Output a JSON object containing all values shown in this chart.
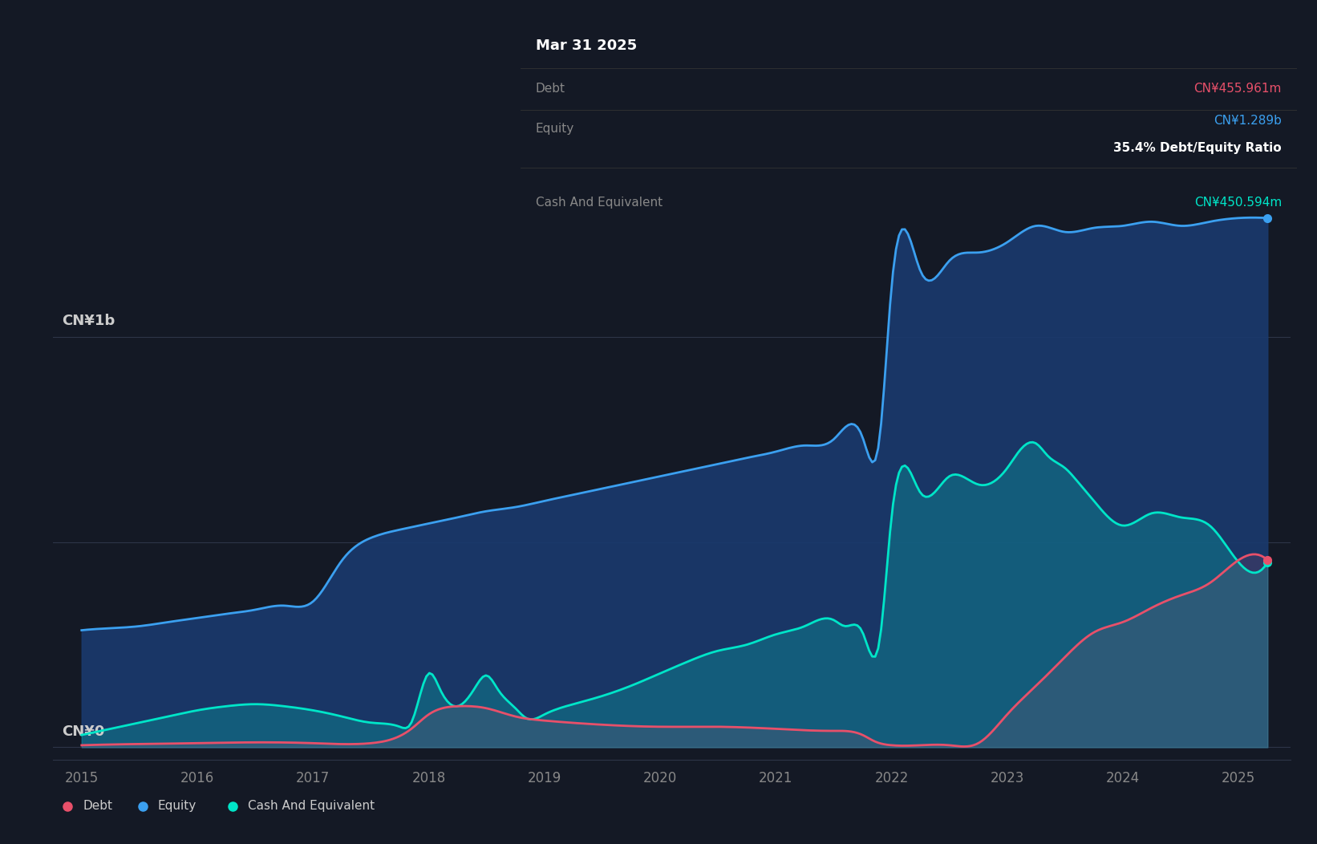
{
  "background_color": "#141925",
  "plot_bg_color": "#141925",
  "grid_color": "#2d3548",
  "y_label_top": "CN¥1b",
  "y_label_bottom": "CN¥0",
  "x_ticks": [
    2015,
    2016,
    2017,
    2018,
    2019,
    2020,
    2021,
    2022,
    2023,
    2024,
    2025
  ],
  "tooltip": {
    "date": "Mar 31 2025",
    "debt_label": "Debt",
    "debt_value": "CN¥455.961m",
    "equity_label": "Equity",
    "equity_value": "CN¥1.289b",
    "ratio": "35.4% Debt/Equity Ratio",
    "cash_label": "Cash And Equivalent",
    "cash_value": "CN¥450.594m",
    "bg": "#080808",
    "text_color": "#888888",
    "title_color": "#ffffff",
    "debt_color": "#e8506a",
    "equity_color": "#3ba0f0",
    "ratio_color": "#ffffff",
    "cash_color": "#00e5c8"
  },
  "legend": {
    "debt_label": "Debt",
    "equity_label": "Equity",
    "cash_label": "Cash And Equivalent",
    "debt_color": "#e8506a",
    "equity_color": "#3ba0f0",
    "cash_color": "#00e5c8",
    "bg": "#1e2535"
  },
  "equity": {
    "x": [
      2015.0,
      2015.25,
      2015.5,
      2015.75,
      2016.0,
      2016.25,
      2016.5,
      2016.75,
      2017.0,
      2017.25,
      2017.5,
      2017.75,
      2018.0,
      2018.25,
      2018.5,
      2018.75,
      2019.0,
      2019.25,
      2019.5,
      2019.75,
      2020.0,
      2020.25,
      2020.5,
      2020.75,
      2021.0,
      2021.25,
      2021.5,
      2021.75,
      2021.9,
      2022.0,
      2022.25,
      2022.5,
      2022.75,
      2023.0,
      2023.25,
      2023.5,
      2023.75,
      2024.0,
      2024.25,
      2024.5,
      2024.75,
      2025.0,
      2025.25
    ],
    "y": [
      0.285,
      0.29,
      0.295,
      0.305,
      0.315,
      0.325,
      0.335,
      0.345,
      0.355,
      0.455,
      0.51,
      0.53,
      0.545,
      0.56,
      0.575,
      0.585,
      0.6,
      0.615,
      0.63,
      0.645,
      0.66,
      0.675,
      0.69,
      0.705,
      0.72,
      0.735,
      0.75,
      0.755,
      0.76,
      1.12,
      1.16,
      1.185,
      1.205,
      1.23,
      1.27,
      1.255,
      1.265,
      1.27,
      1.28,
      1.27,
      1.28,
      1.289,
      1.289
    ],
    "color": "#3ba0f0",
    "fill_color": "#1a3a6e",
    "fill_alpha": 0.9,
    "linewidth": 2.0
  },
  "cash": {
    "x": [
      2015.0,
      2015.25,
      2015.5,
      2015.75,
      2016.0,
      2016.25,
      2016.5,
      2016.75,
      2017.0,
      2017.25,
      2017.5,
      2017.75,
      2017.85,
      2018.0,
      2018.1,
      2018.25,
      2018.4,
      2018.5,
      2018.6,
      2018.75,
      2018.85,
      2019.0,
      2019.25,
      2019.5,
      2019.75,
      2020.0,
      2020.25,
      2020.5,
      2020.75,
      2021.0,
      2021.25,
      2021.5,
      2021.6,
      2021.75,
      2021.9,
      2022.0,
      2022.25,
      2022.5,
      2022.75,
      2023.0,
      2023.1,
      2023.25,
      2023.35,
      2023.5,
      2023.6,
      2023.75,
      2024.0,
      2024.25,
      2024.5,
      2024.75,
      2025.0,
      2025.25
    ],
    "y": [
      0.03,
      0.045,
      0.06,
      0.075,
      0.09,
      0.1,
      0.105,
      0.1,
      0.09,
      0.075,
      0.06,
      0.05,
      0.06,
      0.18,
      0.14,
      0.1,
      0.145,
      0.175,
      0.14,
      0.095,
      0.07,
      0.08,
      0.105,
      0.125,
      0.15,
      0.18,
      0.21,
      0.235,
      0.25,
      0.275,
      0.295,
      0.31,
      0.295,
      0.28,
      0.265,
      0.56,
      0.62,
      0.66,
      0.64,
      0.68,
      0.72,
      0.74,
      0.71,
      0.68,
      0.65,
      0.6,
      0.54,
      0.57,
      0.56,
      0.54,
      0.4506,
      0.4506
    ],
    "color": "#00e5c8",
    "fill_color": "#00e5c8",
    "fill_alpha": 0.22,
    "linewidth": 2.0
  },
  "debt": {
    "x": [
      2015.0,
      2015.5,
      2016.0,
      2016.5,
      2017.0,
      2017.5,
      2017.85,
      2018.0,
      2018.25,
      2018.5,
      2018.75,
      2019.0,
      2019.5,
      2020.0,
      2020.5,
      2021.0,
      2021.5,
      2021.75,
      2021.85,
      2022.0,
      2022.25,
      2022.5,
      2022.75,
      2023.0,
      2023.25,
      2023.5,
      2023.75,
      2024.0,
      2024.25,
      2024.5,
      2024.75,
      2025.0,
      2025.25
    ],
    "y": [
      0.005,
      0.008,
      0.01,
      0.012,
      0.01,
      0.01,
      0.045,
      0.08,
      0.1,
      0.095,
      0.075,
      0.065,
      0.055,
      0.05,
      0.05,
      0.045,
      0.04,
      0.03,
      0.015,
      0.005,
      0.005,
      0.005,
      0.01,
      0.08,
      0.15,
      0.22,
      0.28,
      0.305,
      0.34,
      0.37,
      0.4,
      0.456,
      0.456
    ],
    "color": "#e8506a",
    "fill_color": "#e8506a",
    "fill_alpha": 0.12,
    "linewidth": 2.0
  },
  "ylim": [
    -0.03,
    1.45
  ],
  "xlim": [
    2014.75,
    2025.45
  ]
}
